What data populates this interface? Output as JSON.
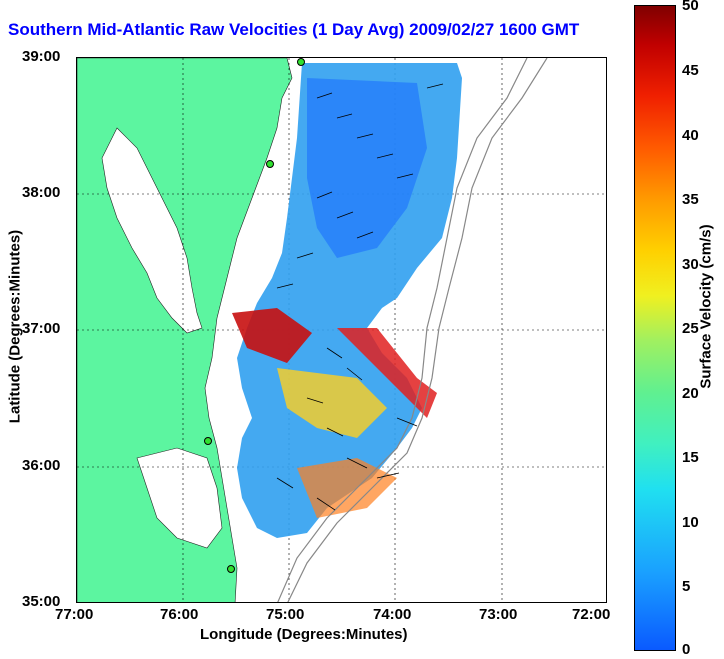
{
  "title": "Southern Mid-Atlantic Raw Velocities (1 Day Avg) 2009/02/27 1600 GMT",
  "axes": {
    "xlabel": "Longitude (Degrees:Minutes)",
    "ylabel": "Latitude (Degrees:Minutes)",
    "xticks": [
      "77:00",
      "76:00",
      "75:00",
      "74:00",
      "73:00",
      "72:00"
    ],
    "yticks": [
      "39:00",
      "38:00",
      "37:00",
      "36:00",
      "35:00"
    ]
  },
  "colorbar": {
    "label": "Surface Velocity (cm/s)",
    "ticks": [
      "50",
      "45",
      "40",
      "35",
      "30",
      "25",
      "20",
      "15",
      "10",
      "5",
      "0"
    ],
    "range": [
      0,
      50
    ]
  },
  "colors": {
    "land": "#5cf5a0",
    "water": "#ffffff",
    "title": "#0000ff"
  },
  "stations": [
    {
      "name": "station-1"
    },
    {
      "name": "station-2"
    },
    {
      "name": "station-3"
    },
    {
      "name": "station-4"
    }
  ]
}
